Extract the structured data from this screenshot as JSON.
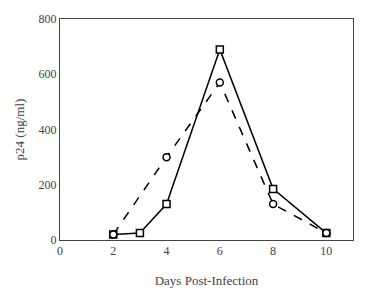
{
  "chart_data": {
    "type": "line",
    "xlabel": "Days Post-Infection",
    "ylabel": "p24 (ng/ml)",
    "series": [
      {
        "x": [
          2,
          3,
          4,
          6,
          8,
          10
        ],
        "values": [
          20,
          25,
          130,
          690,
          185,
          25
        ],
        "color": "#000000",
        "line_style": "solid",
        "marker": "square"
      },
      {
        "x": [
          2,
          4,
          6,
          8,
          10
        ],
        "values": [
          20,
          300,
          570,
          130,
          25
        ],
        "color": "#000000",
        "line_style": "dashed",
        "marker": "circle"
      }
    ],
    "xlim": [
      0,
      11
    ],
    "ylim": [
      0,
      800
    ],
    "xticks": [
      0,
      2,
      4,
      6,
      8,
      10
    ],
    "yticks": [
      0,
      200,
      400,
      600,
      800
    ],
    "grid": false
  }
}
